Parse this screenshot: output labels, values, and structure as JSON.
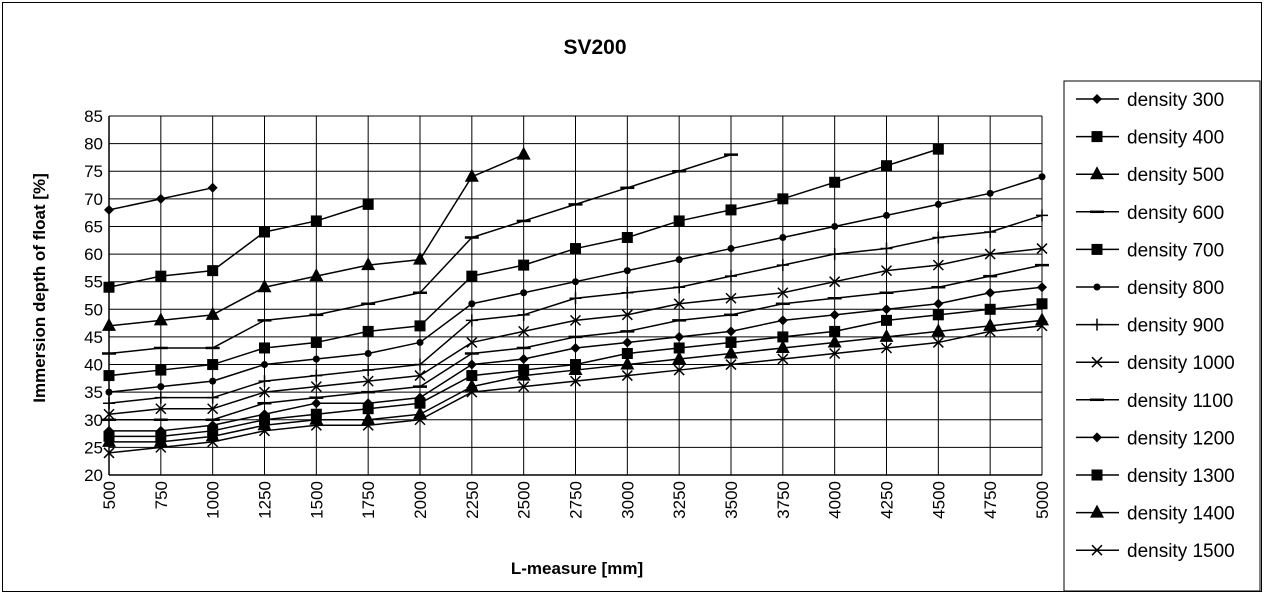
{
  "chart_data": {
    "type": "line",
    "title": "SV200",
    "xlabel": "L-measure [mm]",
    "ylabel": "Immersion depth of float [%]",
    "x": [
      500,
      750,
      1000,
      1250,
      1500,
      1750,
      2000,
      2250,
      2500,
      2750,
      3000,
      3250,
      3500,
      3750,
      4000,
      4250,
      4500,
      4750,
      5000
    ],
    "ylim": [
      20,
      85
    ],
    "yticks": [
      20,
      25,
      30,
      35,
      40,
      45,
      50,
      55,
      60,
      65,
      70,
      75,
      80,
      85
    ],
    "grid": true,
    "legend_position": "right",
    "series": [
      {
        "name": "density 300",
        "marker": "diamond",
        "values": [
          68,
          70,
          72,
          null,
          null,
          null,
          null,
          null,
          null,
          null,
          null,
          null,
          null,
          null,
          null,
          null,
          null,
          null,
          null
        ]
      },
      {
        "name": "density 400",
        "marker": "square",
        "values": [
          54,
          56,
          57,
          64,
          66,
          69,
          null,
          null,
          null,
          null,
          null,
          null,
          null,
          null,
          null,
          null,
          null,
          null,
          null
        ]
      },
      {
        "name": "density 500",
        "marker": "triangle",
        "values": [
          47,
          48,
          49,
          54,
          56,
          58,
          59,
          74,
          78,
          null,
          null,
          null,
          null,
          null,
          null,
          null,
          null,
          null,
          null
        ]
      },
      {
        "name": "density 600",
        "marker": "dash",
        "values": [
          42,
          43,
          43,
          48,
          49,
          51,
          53,
          63,
          66,
          69,
          72,
          75,
          78,
          null,
          null,
          null,
          null,
          null,
          null
        ]
      },
      {
        "name": "density 700",
        "marker": "square",
        "values": [
          38,
          39,
          40,
          43,
          44,
          46,
          47,
          56,
          58,
          61,
          63,
          66,
          68,
          70,
          73,
          76,
          79,
          null,
          null
        ]
      },
      {
        "name": "density 800",
        "marker": "circle",
        "values": [
          35,
          36,
          37,
          40,
          41,
          42,
          44,
          51,
          53,
          55,
          57,
          59,
          61,
          63,
          65,
          67,
          69,
          71,
          74
        ]
      },
      {
        "name": "density 900",
        "marker": "plus",
        "values": [
          33,
          34,
          34,
          37,
          38,
          39,
          40,
          48,
          49,
          52,
          53,
          54,
          56,
          58,
          60,
          61,
          63,
          64,
          67
        ]
      },
      {
        "name": "density 1000",
        "marker": "x",
        "values": [
          31,
          32,
          32,
          35,
          36,
          37,
          38,
          44,
          46,
          48,
          49,
          51,
          52,
          53,
          55,
          57,
          58,
          60,
          61
        ]
      },
      {
        "name": "density 1100",
        "marker": "dash",
        "values": [
          30,
          30,
          30,
          33,
          34,
          35,
          36,
          42,
          43,
          45,
          46,
          48,
          49,
          51,
          52,
          53,
          54,
          56,
          58
        ]
      },
      {
        "name": "density 1200",
        "marker": "diamond",
        "values": [
          28,
          28,
          29,
          31,
          33,
          33,
          34,
          40,
          41,
          43,
          44,
          45,
          46,
          48,
          49,
          50,
          51,
          53,
          54
        ]
      },
      {
        "name": "density 1300",
        "marker": "square",
        "values": [
          27,
          27,
          28,
          30,
          31,
          32,
          33,
          38,
          39,
          40,
          42,
          43,
          44,
          45,
          46,
          48,
          49,
          50,
          51
        ]
      },
      {
        "name": "density 1400",
        "marker": "triangle",
        "values": [
          26,
          26,
          27,
          29,
          30,
          30,
          31,
          36,
          38,
          39,
          40,
          41,
          42,
          43,
          44,
          45,
          46,
          47,
          48
        ]
      },
      {
        "name": "density 1500",
        "marker": "x",
        "values": [
          24,
          25,
          26,
          28,
          29,
          29,
          30,
          35,
          36,
          37,
          38,
          39,
          40,
          41,
          42,
          43,
          44,
          46,
          47
        ]
      }
    ]
  }
}
